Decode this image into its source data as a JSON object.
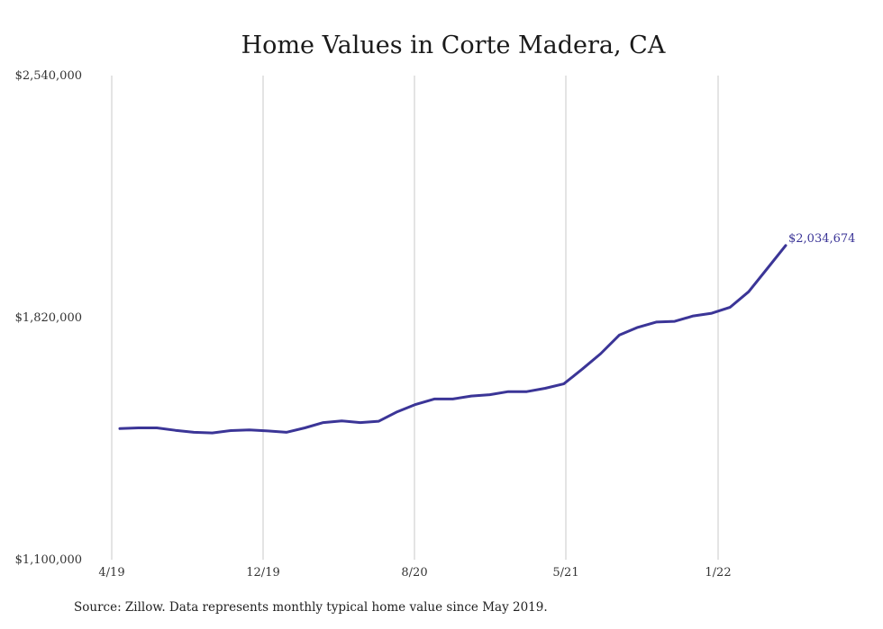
{
  "chart_data": {
    "type": "line",
    "title": "Home Values in Corte Madera, CA",
    "xlabel": "",
    "ylabel": "",
    "ylim": [
      1100000,
      2540000
    ],
    "y_ticks": [
      "$2,540,000",
      "$1,820,000",
      "$1,100,000"
    ],
    "y_tick_values": [
      2540000,
      1820000,
      1100000
    ],
    "x_ticks": [
      "4/19",
      "12/19",
      "8/20",
      "5/21",
      "1/22"
    ],
    "grid": "vertical",
    "line_color": "#3b3597",
    "end_label": "$2,034,674",
    "x": [
      "2019-05",
      "2019-06",
      "2019-07",
      "2019-08",
      "2019-09",
      "2019-10",
      "2019-11",
      "2019-12",
      "2020-01",
      "2020-02",
      "2020-03",
      "2020-04",
      "2020-05",
      "2020-06",
      "2020-07",
      "2020-08",
      "2020-09",
      "2020-10",
      "2020-11",
      "2020-12",
      "2021-01",
      "2021-02",
      "2021-03",
      "2021-04",
      "2021-05",
      "2021-06",
      "2021-07",
      "2021-08",
      "2021-09",
      "2021-10",
      "2021-11",
      "2021-12",
      "2022-01",
      "2022-02",
      "2022-03",
      "2022-04",
      "2022-05"
    ],
    "series": [
      {
        "values": [
          1490000,
          1492000,
          1492000,
          1485000,
          1479000,
          1477000,
          1484000,
          1486000,
          1483000,
          1479000,
          1492000,
          1508000,
          1513000,
          1508000,
          1512000,
          1540000,
          1562000,
          1578000,
          1578000,
          1587000,
          1591000,
          1600000,
          1600000,
          1610000,
          1623000,
          1667000,
          1713000,
          1768000,
          1791000,
          1807000,
          1809000,
          1825000,
          1833000,
          1851000,
          1897000,
          1966000,
          2034674
        ]
      }
    ]
  },
  "source_text": "Source: Zillow. Data represents monthly typical home value since May 2019."
}
